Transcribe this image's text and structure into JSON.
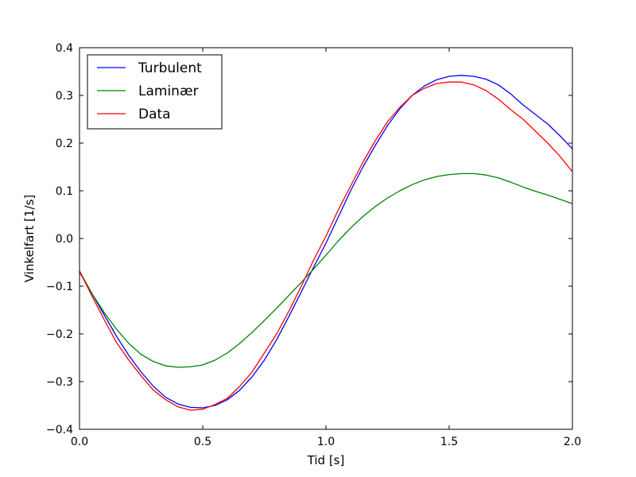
{
  "chart_data": {
    "type": "line",
    "title": "",
    "xlabel": "Tid [s]",
    "ylabel": "Vinkelfart [1/s]",
    "xlim": [
      0.0,
      2.0
    ],
    "ylim": [
      -0.4,
      0.4
    ],
    "xticks": [
      0.0,
      0.5,
      1.0,
      1.5,
      2.0
    ],
    "xtick_labels": [
      "0.0",
      "0.5",
      "1.0",
      "1.5",
      "2.0"
    ],
    "yticks": [
      -0.4,
      -0.3,
      -0.2,
      -0.1,
      0.0,
      0.1,
      0.2,
      0.3,
      0.4
    ],
    "ytick_labels": [
      "−0.4",
      "−0.3",
      "−0.2",
      "−0.1",
      "0.0",
      "0.1",
      "0.2",
      "0.3",
      "0.4"
    ],
    "grid": false,
    "legend": "top-left",
    "series": [
      {
        "name": "Turbulent",
        "color": "#0000ff",
        "x": [
          0.0,
          0.05,
          0.1,
          0.15,
          0.2,
          0.25,
          0.3,
          0.35,
          0.4,
          0.45,
          0.5,
          0.55,
          0.6,
          0.65,
          0.7,
          0.75,
          0.8,
          0.85,
          0.9,
          0.95,
          1.0,
          1.05,
          1.1,
          1.15,
          1.2,
          1.25,
          1.3,
          1.35,
          1.4,
          1.45,
          1.5,
          1.55,
          1.6,
          1.65,
          1.7,
          1.75,
          1.8,
          1.85,
          1.9,
          1.95,
          2.0
        ],
        "y": [
          -0.07,
          -0.115,
          -0.16,
          -0.205,
          -0.245,
          -0.28,
          -0.31,
          -0.333,
          -0.347,
          -0.354,
          -0.355,
          -0.35,
          -0.338,
          -0.318,
          -0.29,
          -0.255,
          -0.212,
          -0.163,
          -0.112,
          -0.06,
          -0.01,
          0.045,
          0.1,
          0.15,
          0.195,
          0.237,
          0.272,
          0.3,
          0.32,
          0.333,
          0.34,
          0.342,
          0.34,
          0.334,
          0.322,
          0.303,
          0.28,
          0.26,
          0.24,
          0.215,
          0.188
        ]
      },
      {
        "name": "Laminær",
        "color": "#008000",
        "x": [
          0.0,
          0.05,
          0.1,
          0.15,
          0.2,
          0.25,
          0.3,
          0.35,
          0.4,
          0.45,
          0.5,
          0.55,
          0.6,
          0.65,
          0.7,
          0.75,
          0.8,
          0.85,
          0.9,
          0.95,
          1.0,
          1.05,
          1.1,
          1.15,
          1.2,
          1.25,
          1.3,
          1.35,
          1.4,
          1.45,
          1.5,
          1.55,
          1.6,
          1.65,
          1.7,
          1.75,
          1.8,
          1.85,
          1.9,
          1.95,
          2.0
        ],
        "y": [
          -0.068,
          -0.115,
          -0.155,
          -0.19,
          -0.22,
          -0.243,
          -0.258,
          -0.267,
          -0.27,
          -0.269,
          -0.265,
          -0.255,
          -0.24,
          -0.22,
          -0.197,
          -0.172,
          -0.146,
          -0.119,
          -0.092,
          -0.064,
          -0.035,
          -0.005,
          0.022,
          0.046,
          0.067,
          0.085,
          0.1,
          0.113,
          0.123,
          0.13,
          0.134,
          0.136,
          0.136,
          0.133,
          0.127,
          0.118,
          0.108,
          0.099,
          0.091,
          0.082,
          0.073
        ]
      },
      {
        "name": "Data",
        "color": "#ff0000",
        "x": [
          0.0,
          0.05,
          0.1,
          0.15,
          0.2,
          0.25,
          0.3,
          0.35,
          0.4,
          0.45,
          0.5,
          0.55,
          0.6,
          0.65,
          0.7,
          0.75,
          0.8,
          0.85,
          0.9,
          0.95,
          1.0,
          1.05,
          1.1,
          1.15,
          1.2,
          1.25,
          1.3,
          1.35,
          1.4,
          1.45,
          1.5,
          1.55,
          1.6,
          1.65,
          1.7,
          1.75,
          1.8,
          1.85,
          1.9,
          1.95,
          2.0
        ],
        "y": [
          -0.068,
          -0.12,
          -0.17,
          -0.218,
          -0.255,
          -0.288,
          -0.318,
          -0.338,
          -0.353,
          -0.36,
          -0.358,
          -0.348,
          -0.335,
          -0.31,
          -0.28,
          -0.24,
          -0.2,
          -0.152,
          -0.1,
          -0.045,
          0.005,
          0.06,
          0.11,
          0.16,
          0.205,
          0.245,
          0.275,
          0.3,
          0.315,
          0.325,
          0.328,
          0.328,
          0.322,
          0.31,
          0.292,
          0.27,
          0.25,
          0.225,
          0.2,
          0.172,
          0.14
        ]
      }
    ]
  }
}
